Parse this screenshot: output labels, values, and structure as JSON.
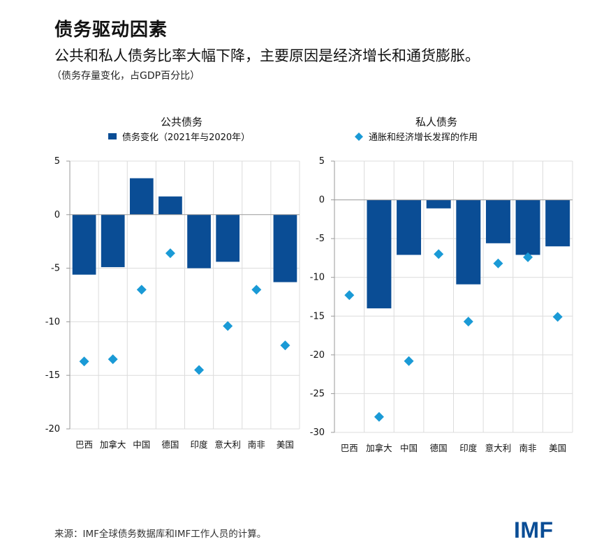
{
  "title": "债务驱动因素",
  "subtitle": "公共和私人债务比率大幅下降，主要原因是经济增长和通货膨胀。",
  "note": "（债务存量变化，占GDP百分比）",
  "source": "来源：IMF全球债务数据库和IMF工作人员的计算。",
  "logo": "IMF",
  "colors": {
    "bar": "#0a4d95",
    "marker": "#1a9ad6",
    "grid": "#dcdcdc",
    "axis": "#999999"
  },
  "chart_data": [
    {
      "type": "bar",
      "title": "公共债务",
      "legend": "债务变化（2021年与2020年）",
      "categories": [
        "巴西",
        "加拿大",
        "中国",
        "德国",
        "印度",
        "意大利",
        "南非",
        "美国"
      ],
      "values": [
        -5.6,
        -4.9,
        3.4,
        1.7,
        -5.0,
        -4.4,
        0,
        -6.3
      ],
      "marker_values": [
        -13.7,
        -13.5,
        -7.0,
        -3.6,
        -14.5,
        -10.4,
        -7.0,
        -12.2
      ],
      "ylim": [
        -20,
        5
      ],
      "yticks": [
        5,
        0,
        -5,
        -10,
        -15,
        -20
      ],
      "ytick_labels": [
        "5",
        "0",
        "-5",
        "-10",
        "-15",
        "-20"
      ]
    },
    {
      "type": "bar",
      "title": "私人债务",
      "legend": "通胀和经济增长发挥的作用",
      "categories": [
        "巴西",
        "加拿大",
        "中国",
        "德国",
        "印度",
        "意大利",
        "南非",
        "美国"
      ],
      "values": [
        0,
        -14.0,
        -7.1,
        -1.1,
        -10.9,
        -5.6,
        -7.1,
        -6.0
      ],
      "marker_values": [
        -12.3,
        -28.0,
        -20.8,
        -7.0,
        -15.7,
        -8.2,
        -7.4,
        -15.1
      ],
      "ylim": [
        -30,
        5
      ],
      "yticks": [
        5,
        0,
        -5,
        -10,
        -15,
        -20,
        -25,
        -30
      ],
      "ytick_labels": [
        "5",
        "0",
        "-5",
        "-10",
        "-15",
        "-20",
        "-25",
        "-30"
      ]
    }
  ]
}
